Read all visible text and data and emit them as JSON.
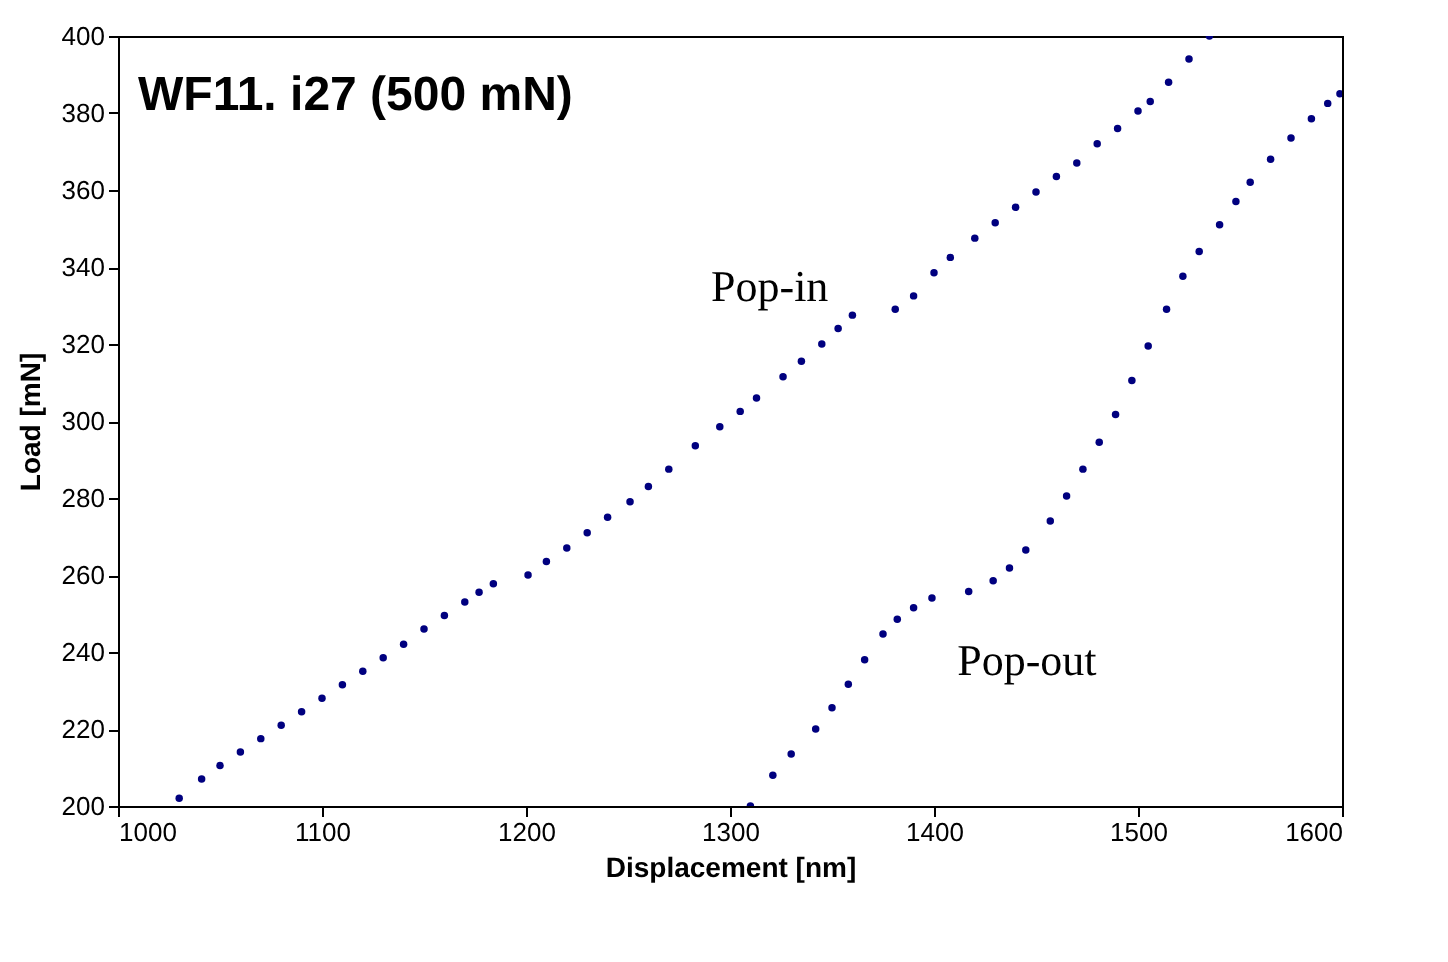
{
  "chart_data": {
    "type": "scatter",
    "title": "WF11. i27 (500 mN)",
    "xlabel": "Displacement [nm]",
    "ylabel": "Load [mN]",
    "marker": "circle",
    "grid": false,
    "xlim": [
      1000,
      1600
    ],
    "xticks": [
      1000,
      1100,
      1200,
      1300,
      1400,
      1500,
      1600
    ],
    "ylim": [
      200,
      400
    ],
    "yticks": [
      200,
      220,
      240,
      260,
      280,
      300,
      320,
      340,
      360,
      380,
      400
    ],
    "series": [
      {
        "color": "#00007f",
        "x": [
          1030,
          1041,
          1050,
          1060,
          1070,
          1080,
          1090,
          1100,
          1110,
          1120,
          1130,
          1140,
          1150,
          1160,
          1170,
          1177,
          1184,
          1201,
          1210,
          1220,
          1230,
          1240,
          1251,
          1260,
          1270,
          1283,
          1295,
          1305,
          1313,
          1326,
          1335,
          1345,
          1353,
          1360,
          1381,
          1390,
          1400,
          1408,
          1420,
          1430,
          1440,
          1450,
          1460,
          1470,
          1480,
          1490,
          1500,
          1506,
          1515,
          1525,
          1535
        ],
        "values": [
          202,
          207,
          210.5,
          214,
          217.5,
          221,
          224.5,
          228,
          231.5,
          235,
          238.5,
          242,
          246,
          249.5,
          253,
          255.5,
          257.7,
          260,
          263.5,
          267,
          271,
          275,
          279,
          283,
          287.5,
          293.6,
          298.5,
          302.5,
          306,
          311.5,
          315.5,
          320,
          324,
          327.5,
          329,
          332.5,
          338.5,
          342.5,
          347.5,
          351.5,
          355.5,
          359.5,
          363.5,
          367,
          372,
          376,
          380.5,
          383,
          388,
          394,
          400
        ]
      },
      {
        "color": "#00007f",
        "x": [
          1310,
          1321,
          1330,
          1342,
          1350,
          1358,
          1366,
          1375,
          1382,
          1390,
          1399,
          1417,
          1429,
          1437,
          1445,
          1457,
          1465,
          1473,
          1481,
          1489,
          1497,
          1505,
          1514,
          1522,
          1530,
          1540,
          1548,
          1555,
          1565,
          1575,
          1585,
          1593,
          1599
        ],
        "values": [
          200,
          208,
          213.5,
          220,
          225.5,
          231.6,
          238,
          244.7,
          248.5,
          251.5,
          254,
          255.7,
          258.5,
          261.8,
          266.5,
          274,
          280.5,
          287.5,
          294.5,
          301.7,
          310.5,
          319.5,
          329,
          337.6,
          344,
          351,
          357,
          362,
          368,
          373.5,
          378.5,
          382.5,
          385
        ]
      }
    ],
    "annotations": [
      {
        "text": "Pop-in",
        "x": 1360,
        "y": 327.5
      },
      {
        "text": "Pop-out",
        "x": 1429,
        "y": 258.5
      }
    ]
  }
}
